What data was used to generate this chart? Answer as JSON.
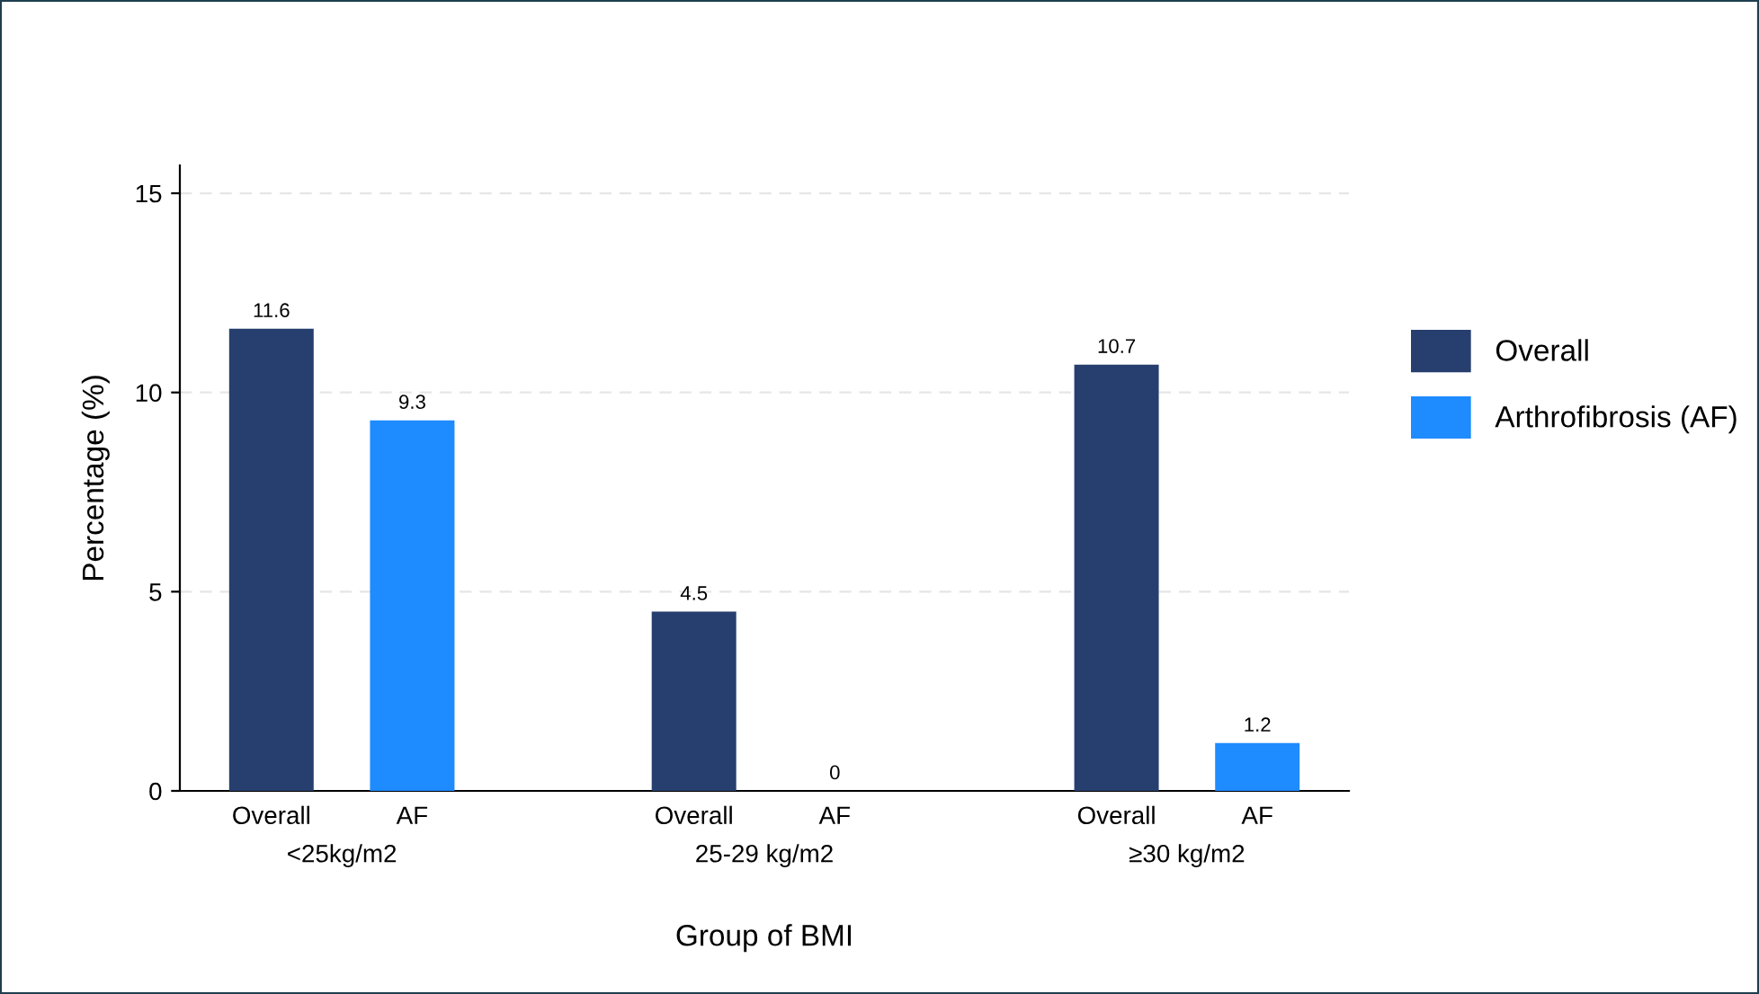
{
  "chart_data": {
    "type": "bar",
    "xlabel": "Group of BMI",
    "ylabel": "Percentage (%)",
    "categories": [
      "Overall",
      "AF",
      null,
      "Overall",
      "AF",
      null,
      "Overall",
      "AF"
    ],
    "series": [
      {
        "name": "Overall",
        "color": "#263f6e",
        "values": [
          11.6,
          null,
          null,
          4.5,
          null,
          null,
          10.7,
          null
        ]
      },
      {
        "name": "Arthrofibrosis (AF)",
        "color": "#1e8bff",
        "values": [
          null,
          9.3,
          null,
          null,
          0,
          null,
          null,
          1.2
        ]
      }
    ],
    "annotations": [
      "<25kg/m2",
      "25-29 kg/m2",
      "≥30 kg/m2"
    ],
    "ylim": [
      0,
      15.7
    ],
    "yticks": [
      0,
      5,
      10,
      15
    ],
    "grid": "y",
    "legend": "right",
    "data_labels": true
  }
}
